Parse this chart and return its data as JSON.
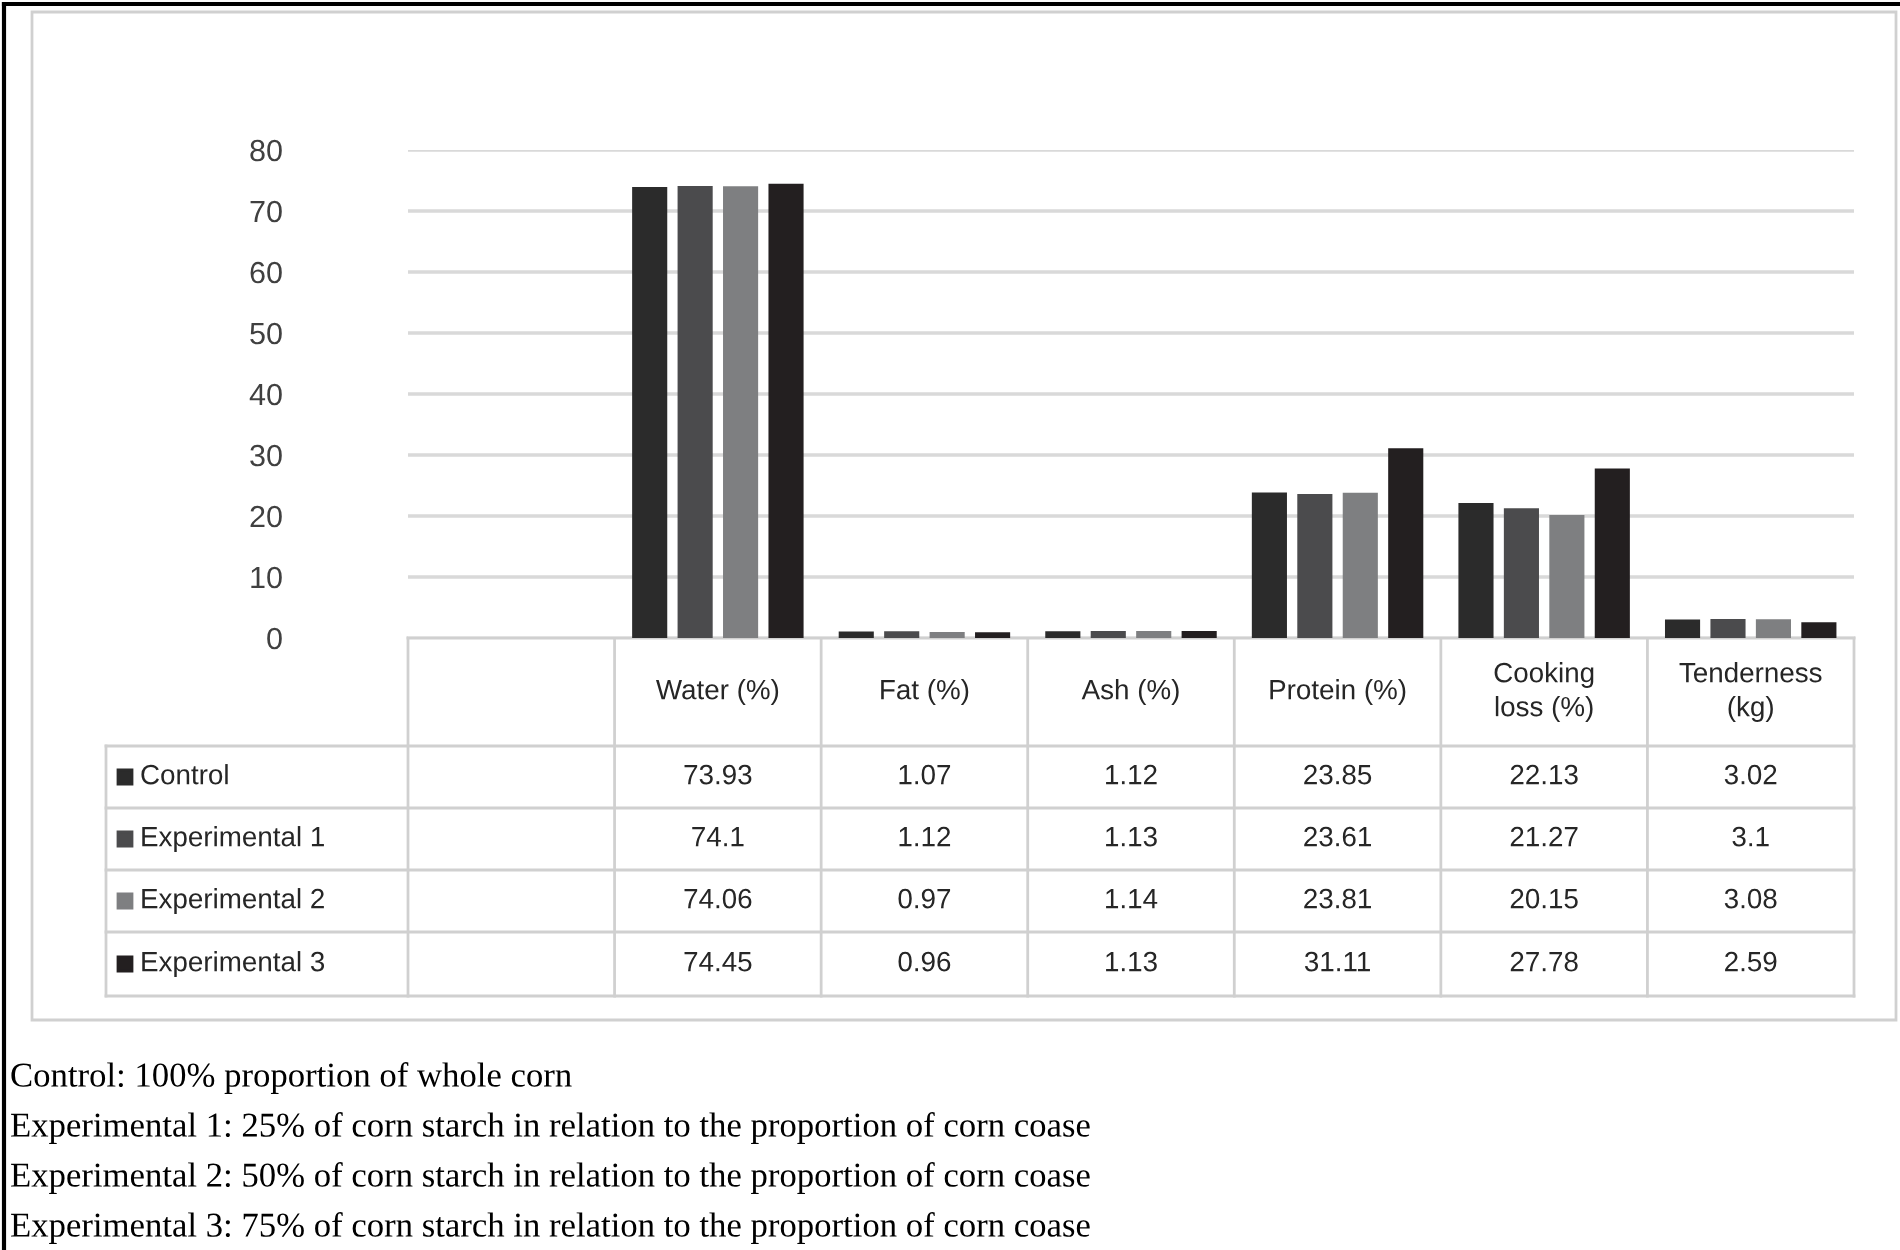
{
  "chart_data": {
    "type": "bar",
    "categories": [
      null,
      "Water (%)",
      "Fat (%)",
      "Ash (%)",
      "Protein (%)",
      "Cooking loss (%)",
      "Tenderness (kg)"
    ],
    "series": [
      {
        "name": "Control",
        "color": "#2b2b2b",
        "values": [
          null,
          73.93,
          1.07,
          1.12,
          23.85,
          22.13,
          3.02
        ]
      },
      {
        "name": "Experimental 1",
        "color": "#4b4b4d",
        "values": [
          null,
          74.1,
          1.12,
          1.13,
          23.61,
          21.27,
          3.1
        ]
      },
      {
        "name": "Experimental 2",
        "color": "#7e7f81",
        "values": [
          null,
          74.06,
          0.97,
          1.14,
          23.81,
          20.15,
          3.08
        ]
      },
      {
        "name": "Experimental 3",
        "color": "#231f20",
        "values": [
          null,
          74.45,
          0.96,
          1.13,
          31.11,
          27.78,
          2.59
        ]
      }
    ],
    "ylim": [
      0,
      80
    ],
    "yticks": [
      0,
      10,
      20,
      30,
      40,
      50,
      60,
      70,
      80
    ],
    "grid": "y",
    "data_labels": true,
    "legend": "bottom left",
    "annotations": [
      "Control: 100% proportion of whole corn",
      "Experimental 1: 25% of corn starch in relation to the proportion of corn coase",
      "Experimental 2: 50% of corn starch in relation to the proportion of corn coase",
      "Experimental 3: 75% of corn starch in relation to the proportion of corn coase"
    ]
  }
}
